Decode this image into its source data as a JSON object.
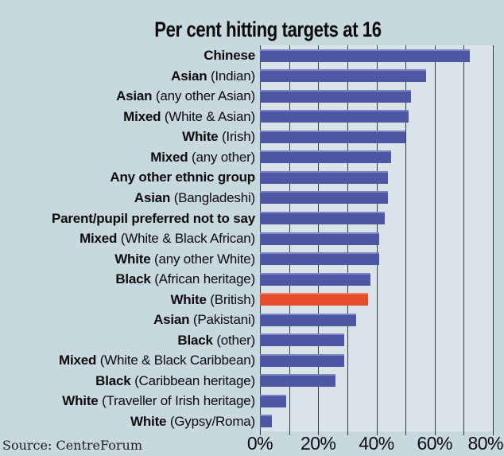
{
  "source": "Source: CentreForum",
  "colors": {
    "background": "#c8d8df",
    "plot_background": "#d9e3e8",
    "gridline": "#2e3d43",
    "bar_blue": "#4d57a3",
    "bar_blue_highlight": "#7c86c2",
    "bar_orange": "#e84a2c",
    "bar_orange_highlight": "#f07a5e",
    "text": "#0b0b0b",
    "source_text": "#1d1d1d"
  },
  "chart_data": {
    "type": "bar",
    "orientation": "horizontal",
    "title": "Per cent hitting targets at 16",
    "xlabel": "",
    "ylabel": "",
    "unit": "percent",
    "xlim": [
      0,
      80
    ],
    "x_ticks": [
      "0%",
      "20%",
      "40%",
      "60%",
      "80%"
    ],
    "x_gridlines": [
      0,
      10,
      20,
      30,
      40,
      50,
      60,
      70,
      80
    ],
    "grid": "vertical",
    "legend": "none",
    "highlight_category": "White (British)",
    "rows": [
      {
        "label_bold": "Chinese",
        "label_rest": "",
        "value": 72,
        "highlight": false
      },
      {
        "label_bold": "Asian",
        "label_rest": " (Indian)",
        "value": 57,
        "highlight": false
      },
      {
        "label_bold": "Asian",
        "label_rest": " (any other Asian)",
        "value": 52,
        "highlight": false
      },
      {
        "label_bold": "Mixed",
        "label_rest": " (White & Asian)",
        "value": 51,
        "highlight": false
      },
      {
        "label_bold": "White",
        "label_rest": " (Irish)",
        "value": 50,
        "highlight": false
      },
      {
        "label_bold": "Mixed",
        "label_rest": " (any other)",
        "value": 45,
        "highlight": false
      },
      {
        "label_bold": "Any other ethnic group",
        "label_rest": "",
        "value": 44,
        "highlight": false
      },
      {
        "label_bold": "Asian",
        "label_rest": " (Bangladeshi)",
        "value": 44,
        "highlight": false
      },
      {
        "label_bold": "Parent/pupil preferred not to say",
        "label_rest": "",
        "value": 43,
        "highlight": false
      },
      {
        "label_bold": "Mixed",
        "label_rest": " (White & Black African)",
        "value": 41,
        "highlight": false
      },
      {
        "label_bold": "White",
        "label_rest": " (any other White)",
        "value": 41,
        "highlight": false
      },
      {
        "label_bold": "Black",
        "label_rest": " (African heritage)",
        "value": 38,
        "highlight": false
      },
      {
        "label_bold": "White",
        "label_rest": " (British)",
        "value": 37,
        "highlight": true
      },
      {
        "label_bold": "Asian",
        "label_rest": " (Pakistani)",
        "value": 33,
        "highlight": false
      },
      {
        "label_bold": "Black",
        "label_rest": " (other)",
        "value": 29,
        "highlight": false
      },
      {
        "label_bold": "Mixed",
        "label_rest": " (White & Black Caribbean)",
        "value": 29,
        "highlight": false
      },
      {
        "label_bold": "Black",
        "label_rest": " (Caribbean heritage)",
        "value": 26,
        "highlight": false
      },
      {
        "label_bold": "White",
        "label_rest": " (Traveller of Irish heritage)",
        "value": 9,
        "highlight": false
      },
      {
        "label_bold": "White",
        "label_rest": " (Gypsy/Roma)",
        "value": 4,
        "highlight": false
      }
    ]
  }
}
